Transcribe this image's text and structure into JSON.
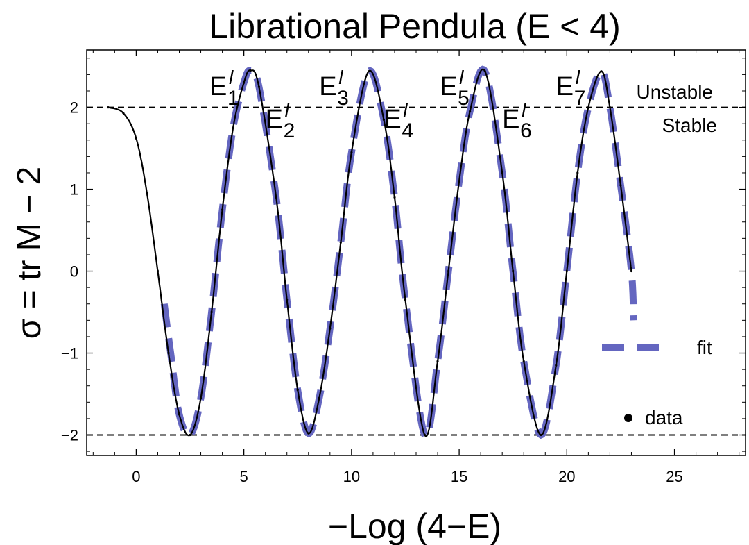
{
  "chart_data": {
    "type": "line",
    "title": "Librational Pendula (E < 4)",
    "xlabel": "−Log (4−E)",
    "ylabel": "σ = tr M − 2",
    "xlim": [
      -2.3,
      28.3
    ],
    "ylim": [
      -2.25,
      2.7
    ],
    "x_ticks": [
      0,
      5,
      10,
      15,
      20,
      25
    ],
    "x_tick_labels": [
      "0",
      "5",
      "10",
      "15",
      "20",
      "25"
    ],
    "y_ticks": [
      -2,
      -1,
      0,
      1,
      2
    ],
    "y_tick_labels": [
      "−2",
      "−1",
      "0",
      "1",
      "2"
    ],
    "reference_lines": [
      {
        "y": 2,
        "style": "dashed"
      },
      {
        "y": -2,
        "style": "dashed"
      }
    ],
    "region_labels": [
      {
        "text": "Unstable",
        "side": "above y=2"
      },
      {
        "text": "Stable",
        "side": "below y=2"
      }
    ],
    "annotations": [
      {
        "base": "E",
        "sub": "1",
        "sup": "l",
        "x": 3.4,
        "y": 2.15
      },
      {
        "base": "E",
        "sub": "2",
        "sup": "l",
        "x": 6.0,
        "y": 1.75
      },
      {
        "base": "E",
        "sub": "3",
        "sup": "l",
        "x": 8.5,
        "y": 2.15
      },
      {
        "base": "E",
        "sub": "4",
        "sup": "l",
        "x": 11.5,
        "y": 1.75
      },
      {
        "base": "E",
        "sub": "5",
        "sup": "l",
        "x": 14.1,
        "y": 2.15
      },
      {
        "base": "E",
        "sub": "6",
        "sup": "l",
        "x": 17.0,
        "y": 1.75
      },
      {
        "base": "E",
        "sub": "7",
        "sup": "l",
        "x": 19.5,
        "y": 2.15
      }
    ],
    "series": [
      {
        "name": "data",
        "style": "black points",
        "x": [
          -1.3,
          -0.6,
          0.0,
          0.5,
          1.0,
          1.5,
          2.0,
          2.5,
          3.0,
          3.5,
          4.0,
          4.5,
          5.0,
          5.3,
          5.7,
          6.5,
          7.0,
          7.5,
          8.0,
          8.5,
          9.0,
          9.5,
          10.0,
          10.8,
          11.5,
          12.0,
          12.5,
          13.4,
          14.0,
          14.5,
          15.0,
          15.5,
          16.2,
          17.0,
          17.5,
          18.0,
          18.8,
          19.5,
          20.0,
          20.5,
          21.0,
          21.6,
          22.0,
          22.5,
          23.0
        ],
        "y": [
          2.0,
          1.93,
          1.62,
          0.95,
          0.0,
          -1.0,
          -1.75,
          -2.0,
          -1.55,
          -0.5,
          0.75,
          1.75,
          2.3,
          2.45,
          2.25,
          0.9,
          -0.35,
          -1.45,
          -1.98,
          -1.55,
          -0.7,
          0.35,
          1.45,
          2.44,
          1.85,
          0.9,
          -0.35,
          -2.0,
          -1.1,
          0.0,
          1.1,
          1.95,
          2.44,
          1.2,
          0.0,
          -1.1,
          -2.0,
          -1.15,
          0.0,
          1.2,
          2.0,
          2.44,
          2.0,
          1.05,
          0.0
        ]
      },
      {
        "name": "fit",
        "style": "thick dashed blue",
        "x": [
          1.3,
          1.6,
          2.0,
          2.5,
          3.0,
          3.5,
          4.0,
          4.5,
          5.0,
          5.3,
          5.7,
          6.5,
          7.0,
          7.5,
          8.0,
          8.5,
          9.0,
          9.5,
          10.0,
          10.8,
          11.5,
          12.0,
          12.5,
          13.4,
          14.0,
          14.5,
          15.0,
          15.5,
          16.2,
          17.0,
          17.5,
          18.0,
          18.8,
          19.5,
          20.0,
          20.5,
          21.0,
          21.6,
          22.0,
          22.5,
          23.0,
          23.1
        ],
        "y": [
          -0.4,
          -1.0,
          -1.75,
          -2.0,
          -1.55,
          -0.5,
          0.75,
          1.75,
          2.3,
          2.45,
          2.25,
          0.9,
          -0.35,
          -1.45,
          -1.98,
          -1.55,
          -0.7,
          0.35,
          1.45,
          2.44,
          1.85,
          0.9,
          -0.35,
          -2.0,
          -1.1,
          0.0,
          1.1,
          1.95,
          2.44,
          1.2,
          0.0,
          -1.1,
          -2.0,
          -1.15,
          0.0,
          1.2,
          2.0,
          2.44,
          2.0,
          1.05,
          0.0,
          -0.6
        ]
      }
    ],
    "legend": [
      {
        "label": "fit",
        "marker": "dashed-line"
      },
      {
        "label": "data",
        "marker": "dot"
      }
    ],
    "colors": {
      "fit": "#6466c0",
      "data": "#000000",
      "reference": "#000000"
    },
    "grid": false
  }
}
